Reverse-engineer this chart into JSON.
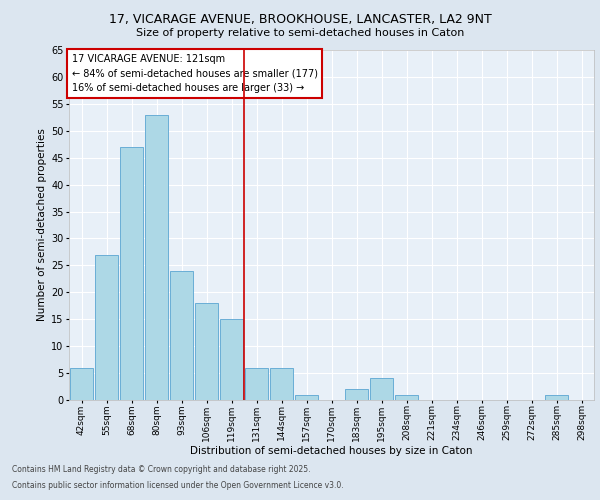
{
  "title1": "17, VICARAGE AVENUE, BROOKHOUSE, LANCASTER, LA2 9NT",
  "title2": "Size of property relative to semi-detached houses in Caton",
  "xlabel": "Distribution of semi-detached houses by size in Caton",
  "ylabel": "Number of semi-detached properties",
  "categories": [
    "42sqm",
    "55sqm",
    "68sqm",
    "80sqm",
    "93sqm",
    "106sqm",
    "119sqm",
    "131sqm",
    "144sqm",
    "157sqm",
    "170sqm",
    "183sqm",
    "195sqm",
    "208sqm",
    "221sqm",
    "234sqm",
    "246sqm",
    "259sqm",
    "272sqm",
    "285sqm",
    "298sqm"
  ],
  "values": [
    6,
    27,
    47,
    53,
    24,
    18,
    15,
    6,
    6,
    1,
    0,
    2,
    4,
    1,
    0,
    0,
    0,
    0,
    0,
    1,
    0
  ],
  "bar_color": "#add8e6",
  "bar_edge_color": "#6aaed6",
  "vline_x_index": 6.5,
  "vline_color": "#cc0000",
  "annotation_title": "17 VICARAGE AVENUE: 121sqm",
  "annotation_line1": "← 84% of semi-detached houses are smaller (177)",
  "annotation_line2": "16% of semi-detached houses are larger (33) →",
  "annotation_box_color": "#cc0000",
  "ylim": [
    0,
    65
  ],
  "yticks": [
    0,
    5,
    10,
    15,
    20,
    25,
    30,
    35,
    40,
    45,
    50,
    55,
    60,
    65
  ],
  "footnote1": "Contains HM Land Registry data © Crown copyright and database right 2025.",
  "footnote2": "Contains public sector information licensed under the Open Government Licence v3.0.",
  "bg_color": "#dce6f0",
  "plot_bg_color": "#e8f0f8",
  "grid_color": "#ffffff",
  "title1_fontsize": 9,
  "title2_fontsize": 8,
  "ylabel_fontsize": 7.5,
  "xlabel_fontsize": 7.5,
  "ytick_fontsize": 7,
  "xtick_fontsize": 6.5,
  "ann_fontsize": 7,
  "footnote_fontsize": 5.5
}
